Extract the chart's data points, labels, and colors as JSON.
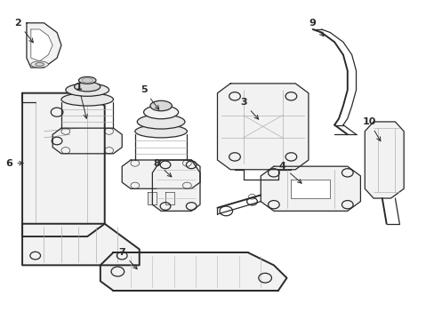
{
  "bg_color": "#ffffff",
  "line_color": "#2a2a2a",
  "lw": 0.9,
  "lw2": 1.4,
  "lw_thin": 0.45,
  "fig_width": 4.89,
  "fig_height": 3.6,
  "dpi": 100,
  "arrow_lw": 0.7,
  "font_size": 8,
  "gray_fill": "#f2f2f2",
  "mid_fill": "#e8e8e8",
  "dark_fill": "#d8d8d8"
}
